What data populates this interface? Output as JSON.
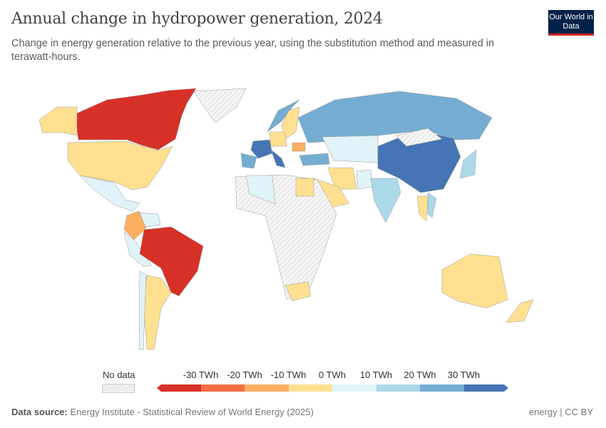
{
  "header": {
    "title": "Annual change in hydropower generation, 2024",
    "subtitle": "Change in energy generation relative to the previous year, using the substitution method and measured in terawatt-hours.",
    "logo": "Our World in Data"
  },
  "chart_data": {
    "type": "choropleth",
    "title": "Annual change in hydropower generation, 2024",
    "unit": "TWh",
    "legend": {
      "no_data_label": "No data",
      "ticks": [
        "-30 TWh",
        "-20 TWh",
        "-10 TWh",
        "0 TWh",
        "10 TWh",
        "20 TWh",
        "30 TWh"
      ],
      "bins": [
        {
          "range": "< -30",
          "color": "#d73027"
        },
        {
          "range": "-30 to -20",
          "color": "#f46d43"
        },
        {
          "range": "-20 to -10",
          "color": "#fdae61"
        },
        {
          "range": "-10 to 0",
          "color": "#fee090"
        },
        {
          "range": "0 to 10",
          "color": "#e0f3f8"
        },
        {
          "range": "10 to 20",
          "color": "#abd9e9"
        },
        {
          "range": "20 to 30",
          "color": "#74add1"
        },
        {
          "range": "> 30",
          "color": "#4575b4"
        }
      ],
      "no_data_color": "#eeeeee"
    },
    "countries": [
      {
        "name": "Canada",
        "bin": 0
      },
      {
        "name": "Brazil",
        "bin": 0
      },
      {
        "name": "Colombia",
        "bin": 2
      },
      {
        "name": "Romania",
        "bin": 2
      },
      {
        "name": "United States",
        "bin": 3
      },
      {
        "name": "Alaska",
        "bin": 3
      },
      {
        "name": "Argentina",
        "bin": 3
      },
      {
        "name": "Australia",
        "bin": 3
      },
      {
        "name": "New Zealand",
        "bin": 3
      },
      {
        "name": "Egypt",
        "bin": 3
      },
      {
        "name": "South Africa",
        "bin": 3
      },
      {
        "name": "Iran",
        "bin": 3
      },
      {
        "name": "Saudi Arabia",
        "bin": 3
      },
      {
        "name": "Sweden",
        "bin": 3
      },
      {
        "name": "Germany",
        "bin": 3
      },
      {
        "name": "Thailand",
        "bin": 3
      },
      {
        "name": "Mexico",
        "bin": 4
      },
      {
        "name": "Peru",
        "bin": 4
      },
      {
        "name": "Chile",
        "bin": 4
      },
      {
        "name": "Algeria",
        "bin": 4
      },
      {
        "name": "Kazakhstan",
        "bin": 4
      },
      {
        "name": "Pakistan",
        "bin": 4
      },
      {
        "name": "Venezuela",
        "bin": 4
      },
      {
        "name": "India",
        "bin": 5
      },
      {
        "name": "Japan",
        "bin": 5
      },
      {
        "name": "Vietnam",
        "bin": 5
      },
      {
        "name": "Russia",
        "bin": 6
      },
      {
        "name": "Spain",
        "bin": 6
      },
      {
        "name": "Turkey",
        "bin": 6
      },
      {
        "name": "Norway",
        "bin": 6
      },
      {
        "name": "China",
        "bin": 7
      },
      {
        "name": "France",
        "bin": 7
      },
      {
        "name": "Italy",
        "bin": 7
      }
    ]
  },
  "footer": {
    "source_label": "Data source:",
    "source": "Energy Institute - Statistical Review of World Energy (2025)",
    "license": "energy | CC BY"
  }
}
